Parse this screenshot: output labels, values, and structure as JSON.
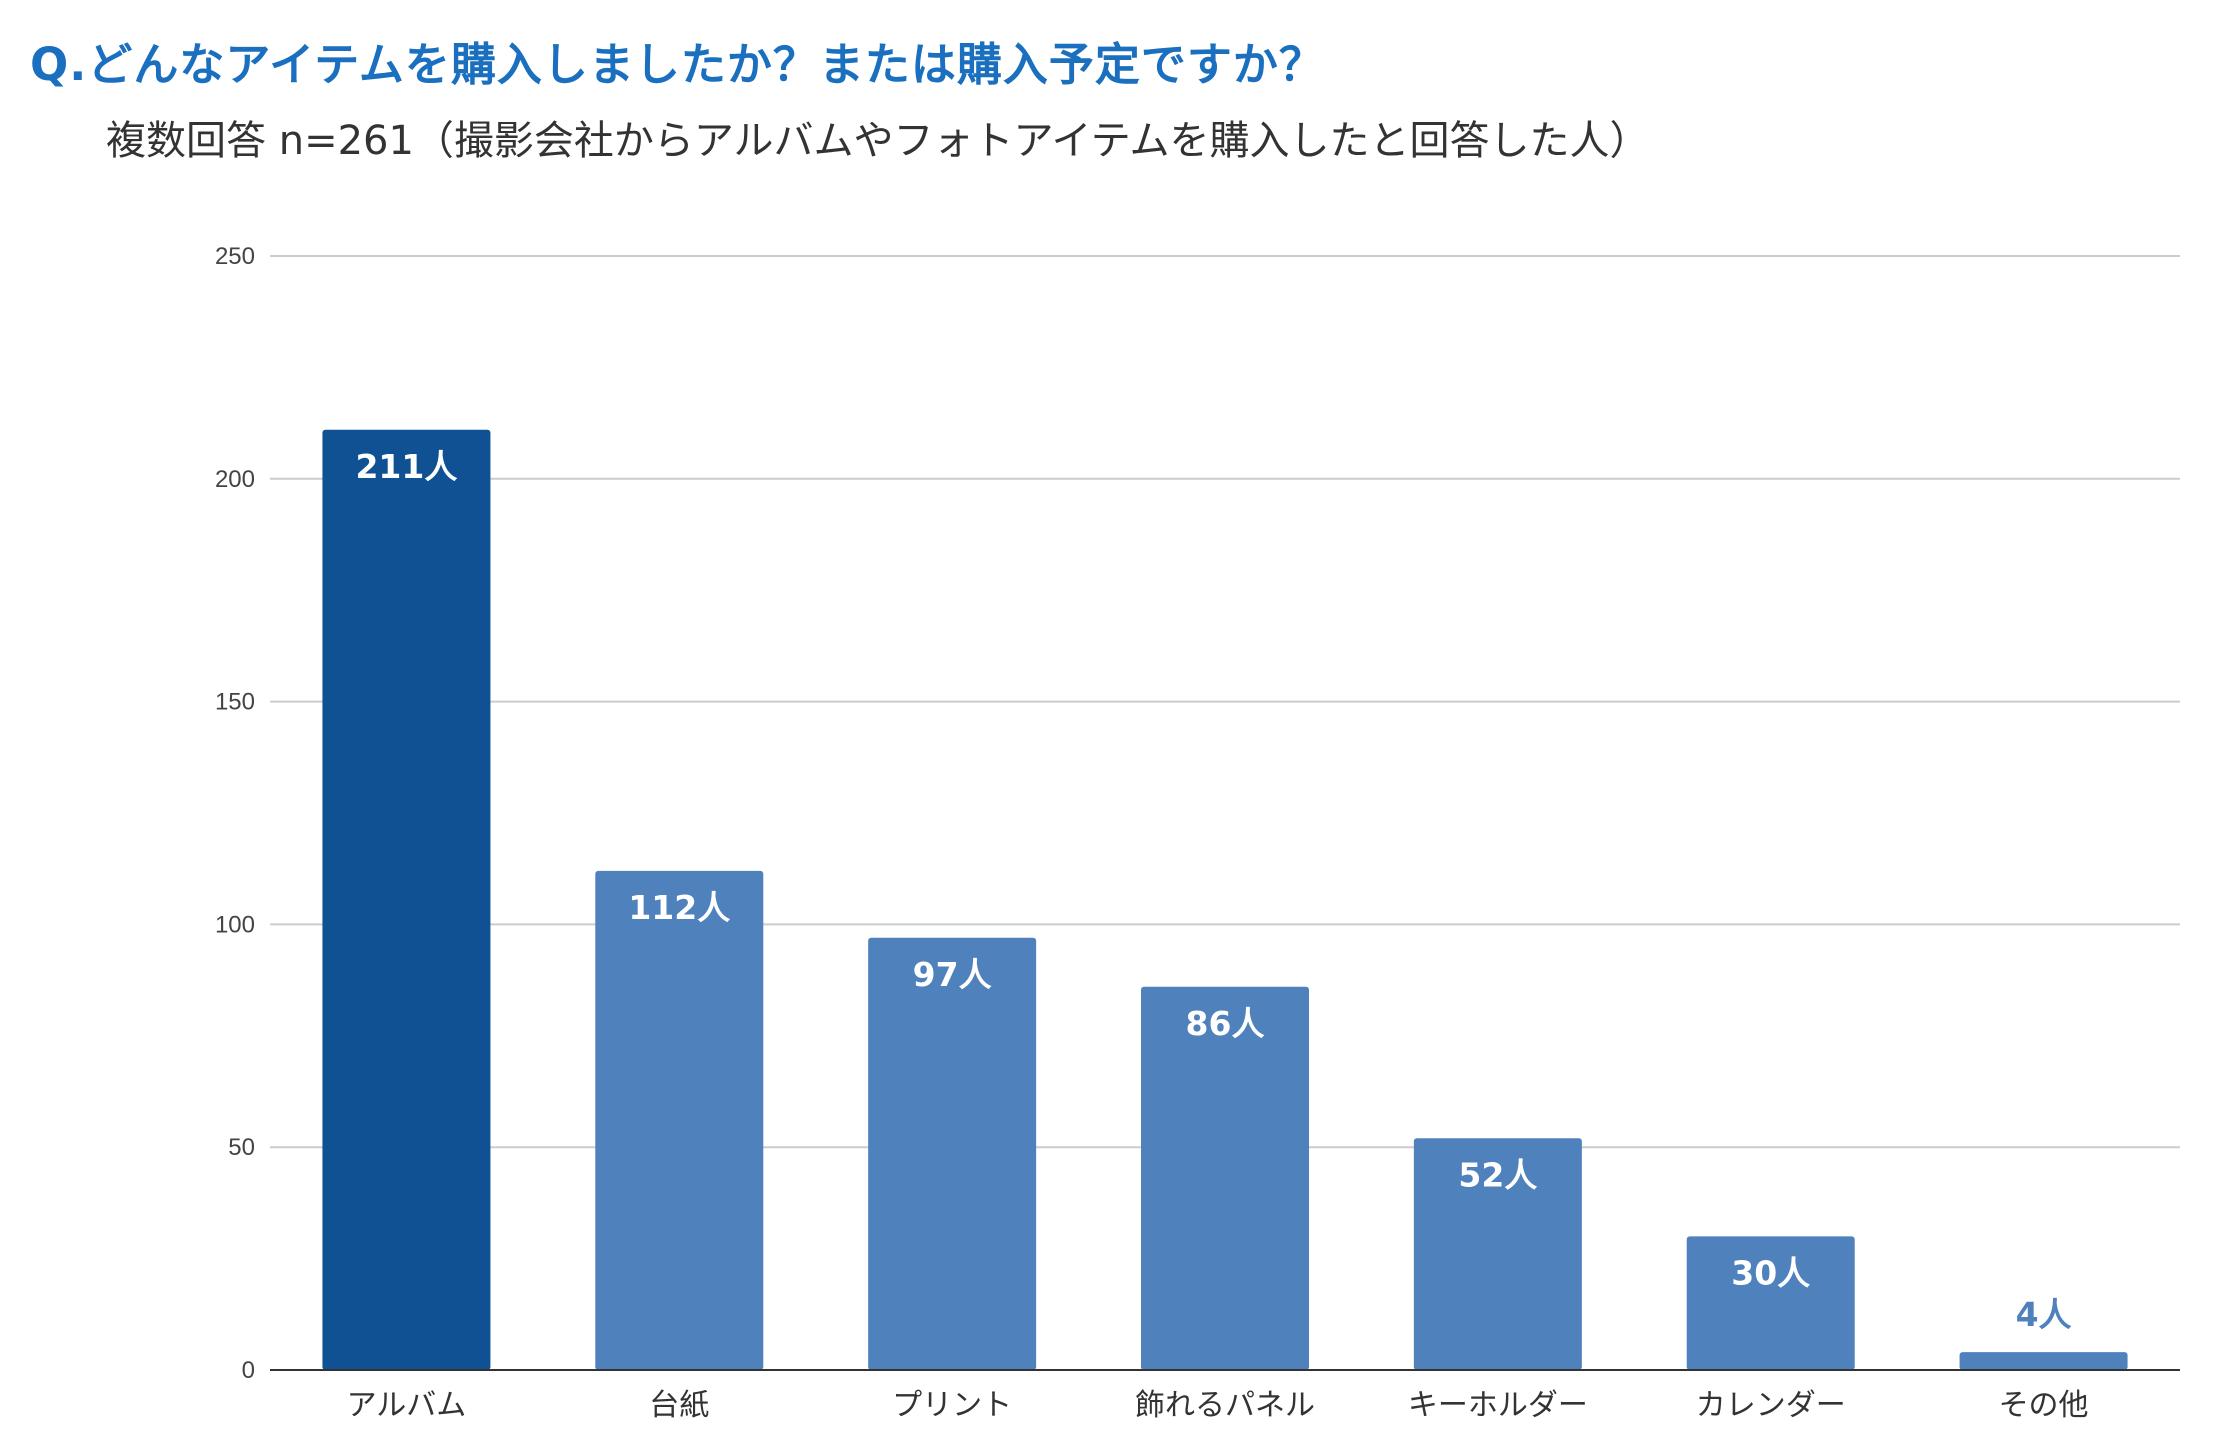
{
  "header": {
    "title": "Q.どんなアイテムを購入しましたか？または購入予定ですか？",
    "subtitle": "複数回答 n=261（撮影会社からアルバムやフォトアイテムを購入したと回答した人）"
  },
  "colors": {
    "title": "#1a6fbf",
    "bar_highlight": "#0f5193",
    "bar_default": "#4f81bd",
    "grid": "#cccccc",
    "axis": "#333333",
    "label_inside": "#ffffff",
    "label_outside": "#4f81bd"
  },
  "chart_data": {
    "type": "bar",
    "title": "Q.どんなアイテムを購入しましたか？または購入予定ですか？",
    "subtitle": "複数回答 n=261（撮影会社からアルバムやフォトアイテムを購入したと回答した人）",
    "categories": [
      "アルバム",
      "台紙",
      "プリント",
      "飾れるパネル",
      "キーホルダー",
      "カレンダー",
      "その他"
    ],
    "values": [
      211,
      112,
      97,
      86,
      52,
      30,
      4
    ],
    "data_labels": [
      "211人",
      "112人",
      "97人",
      "86人",
      "52人",
      "30人",
      "4人"
    ],
    "highlight_index": 0,
    "ylim": [
      0,
      250
    ],
    "yticks": [
      0,
      50,
      100,
      150,
      200,
      250
    ],
    "xlabel": "",
    "ylabel": "",
    "grid": true,
    "legend": "none"
  }
}
